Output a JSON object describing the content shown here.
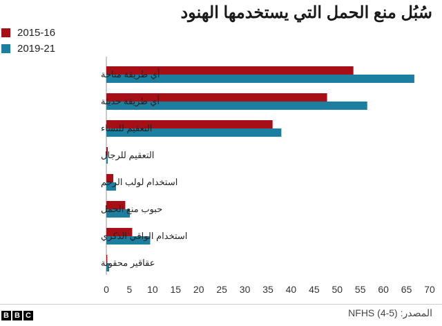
{
  "source": {
    "prefix": "المصدر:",
    "value": "NFHS (4-5)"
  },
  "logo": {
    "letters": [
      "B",
      "B",
      "C"
    ]
  },
  "colors": {
    "series_2015": "#a50f15",
    "series_2019": "#1c7fa0",
    "axis": "#999999",
    "text": "#222222"
  },
  "chart_data": {
    "type": "bar",
    "orientation": "horizontal",
    "title": "سُبُل منع الحمل التي يستخدمها الهنود",
    "categories": [
      "أي طريقة متاحة",
      "أي طريقة حديثة",
      "التعقيم للنساء",
      "التعقيم للرجال",
      "استخدام لولب الرحم",
      "حبوب منع الحمل",
      "استخدام الواقي الذكري",
      "عقاقير محقونة"
    ],
    "series": [
      {
        "name": "2015-16",
        "color": "#a50f15",
        "values": [
          53.5,
          47.8,
          36.0,
          0.3,
          1.5,
          4.1,
          5.6,
          0.2
        ]
      },
      {
        "name": "2019-21",
        "color": "#1c7fa0",
        "values": [
          66.7,
          56.5,
          37.9,
          0.3,
          2.1,
          5.1,
          9.5,
          0.6
        ]
      }
    ],
    "xlim": [
      0,
      70
    ],
    "xticks": [
      0,
      5,
      10,
      15,
      20,
      25,
      30,
      35,
      40,
      45,
      50,
      55,
      60,
      65,
      70
    ],
    "legend_position": "top-left",
    "grid": false
  }
}
